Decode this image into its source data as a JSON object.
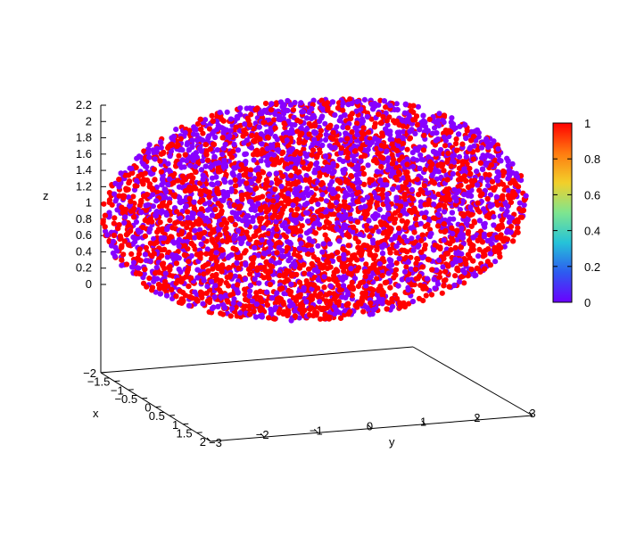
{
  "chart_data": {
    "type": "scatter",
    "title": "",
    "xlabel": "x",
    "ylabel": "y",
    "zlabel": "z",
    "xlim": [
      -2,
      2
    ],
    "ylim": [
      -3,
      3
    ],
    "zlim": [
      -0.1,
      2.2
    ],
    "xticks": [
      "−2",
      "−1.5",
      "−1",
      "−0.5",
      "0",
      "0.5",
      "1",
      "1.5",
      "2"
    ],
    "yticks": [
      "−3",
      "−2",
      "−1",
      "0",
      "1",
      "2",
      "3"
    ],
    "zticks": [
      "0",
      "0.2",
      "0.4",
      "0.6",
      "0.8",
      "1",
      "1.2",
      "1.4",
      "1.6",
      "1.8",
      "2",
      "2.2"
    ],
    "colorbar": {
      "range": [
        0,
        1
      ],
      "ticks": [
        "0",
        "0.2",
        "0.4",
        "0.6",
        "0.8",
        "1"
      ],
      "palette": [
        "#6a00ff",
        "#2d5bf0",
        "#25c3d8",
        "#7ee58f",
        "#f2d02a",
        "#ff7a10",
        "#ff0000"
      ]
    },
    "point_colors": {
      "low": "#8800ff",
      "high": "#ff0000"
    },
    "series": [
      {
        "description_of_distribution": "points fill an ellipsoid-like cloud; x in [-2,2], y in [-3,3], z in [0,2.2]; each point colored 0 or 1",
        "count": 6000,
        "values_used": [
          0,
          1
        ]
      }
    ],
    "grid": false,
    "legend": "colorbar right"
  }
}
